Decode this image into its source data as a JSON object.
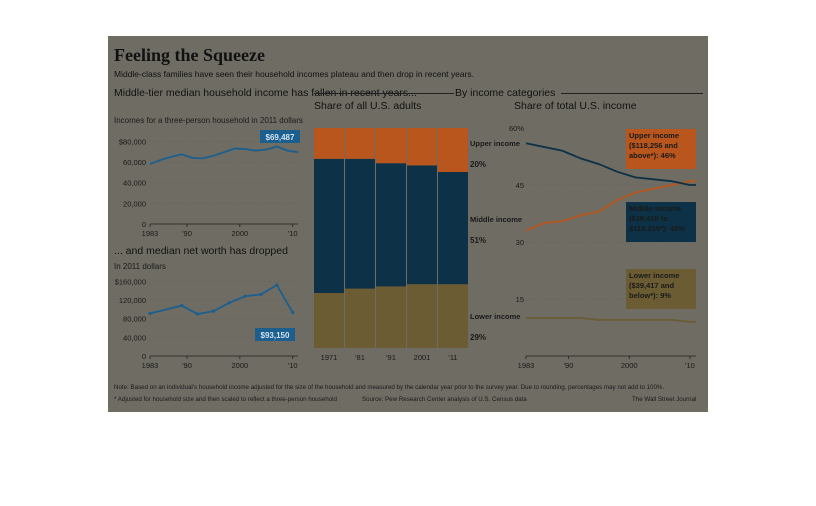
{
  "title": "Feeling the Squeeze",
  "subtitle": "Middle-class families have seen their household incomes plateau and then drop in recent years.",
  "section_label": "By income categories",
  "footnote": "Note: Based on an individual's household income adjusted for the size of the household and measured by the calendar year prior to the survey year. Due to rounding, percentages may not add to 100%.",
  "footnote2": "* Adjusted for household size and then scaled to reflect a three-person household",
  "source": "Source: Pew Research Center analysis of U.S. Census data",
  "credit": "The Wall Street Journal",
  "colors": {
    "panel": "#6e6c63",
    "upper": "#b8561e",
    "middle": "#0d3147",
    "lower": "#6b5c33",
    "highlight_blue": "#1c5f8e",
    "yellow": "#f5b335"
  },
  "chart_data": [
    {
      "type": "line",
      "title": "Middle-tier median household income has fallen in recent years...",
      "ylabel": "Incomes for a three-person household in 2011 dollars",
      "x": [
        1983,
        1985,
        1987,
        1989,
        1991,
        1993,
        1995,
        1997,
        1999,
        2001,
        2003,
        2005,
        2007,
        2009,
        2011
      ],
      "y": [
        58000,
        62000,
        65000,
        67500,
        64000,
        63500,
        66000,
        69500,
        73000,
        72500,
        71000,
        72000,
        75000,
        71000,
        69487
      ],
      "xticks": [
        "1983",
        "'90",
        "2000",
        "'10"
      ],
      "yticks": [
        "0",
        "20,000",
        "40,000",
        "60,000",
        "$80,000"
      ],
      "ylim": [
        0,
        90000
      ],
      "callout": "$69,487"
    },
    {
      "type": "line",
      "title": "... and median net worth has dropped",
      "ylabel": "In 2011 dollars",
      "x": [
        1983,
        1989,
        1992,
        1995,
        1998,
        2001,
        2004,
        2007,
        2010
      ],
      "y": [
        91000,
        108000,
        90000,
        96000,
        114000,
        128000,
        132000,
        152000,
        93150
      ],
      "xticks": [
        "1983",
        "'90",
        "2000",
        "'10"
      ],
      "yticks": [
        "0",
        "40,000",
        "80,000",
        "120,000",
        "$160,000"
      ],
      "ylim": [
        0,
        180000
      ],
      "callout": "$93,150"
    },
    {
      "type": "bar",
      "title": "Share of all U.S. adults",
      "categories": [
        "1971",
        "'81",
        "'91",
        "2001",
        "'11"
      ],
      "series": [
        {
          "name": "Lower income",
          "values": [
            25,
            27,
            28,
            29,
            29
          ]
        },
        {
          "name": "Middle income",
          "values": [
            61,
            59,
            56,
            54,
            51
          ]
        },
        {
          "name": "Upper income",
          "values": [
            14,
            14,
            16,
            17,
            20
          ]
        }
      ],
      "labels": [
        {
          "name": "Upper income",
          "value": "20%"
        },
        {
          "name": "Middle income",
          "value": "51%"
        },
        {
          "name": "Lower income",
          "value": "29%"
        }
      ]
    },
    {
      "type": "line",
      "title": "Share of total U.S. income",
      "xticks": [
        "1983",
        "'90",
        "2000",
        "'10"
      ],
      "yticks": [
        "15",
        "30",
        "45",
        "60%"
      ],
      "ylim": [
        0,
        60
      ],
      "x": [
        1983,
        1986,
        1989,
        1992,
        1995,
        1998,
        2001,
        2004,
        2007,
        2010,
        2011
      ],
      "series": [
        {
          "name": "Upper income ($118,256 and above*): 46%",
          "values": [
            33,
            35,
            35.5,
            37,
            38,
            41,
            43,
            44,
            45,
            46,
            46
          ]
        },
        {
          "name": "Middle income ($39,418 to $118,255*): 45%",
          "values": [
            56,
            55,
            54,
            52,
            50.5,
            48.5,
            47,
            46.5,
            46,
            45,
            45
          ]
        },
        {
          "name": "Lower income ($39,417 and below*): 9%",
          "values": [
            10,
            10,
            10,
            10,
            9.5,
            9.5,
            9.5,
            9.5,
            9.5,
            9,
            9
          ]
        }
      ]
    }
  ]
}
